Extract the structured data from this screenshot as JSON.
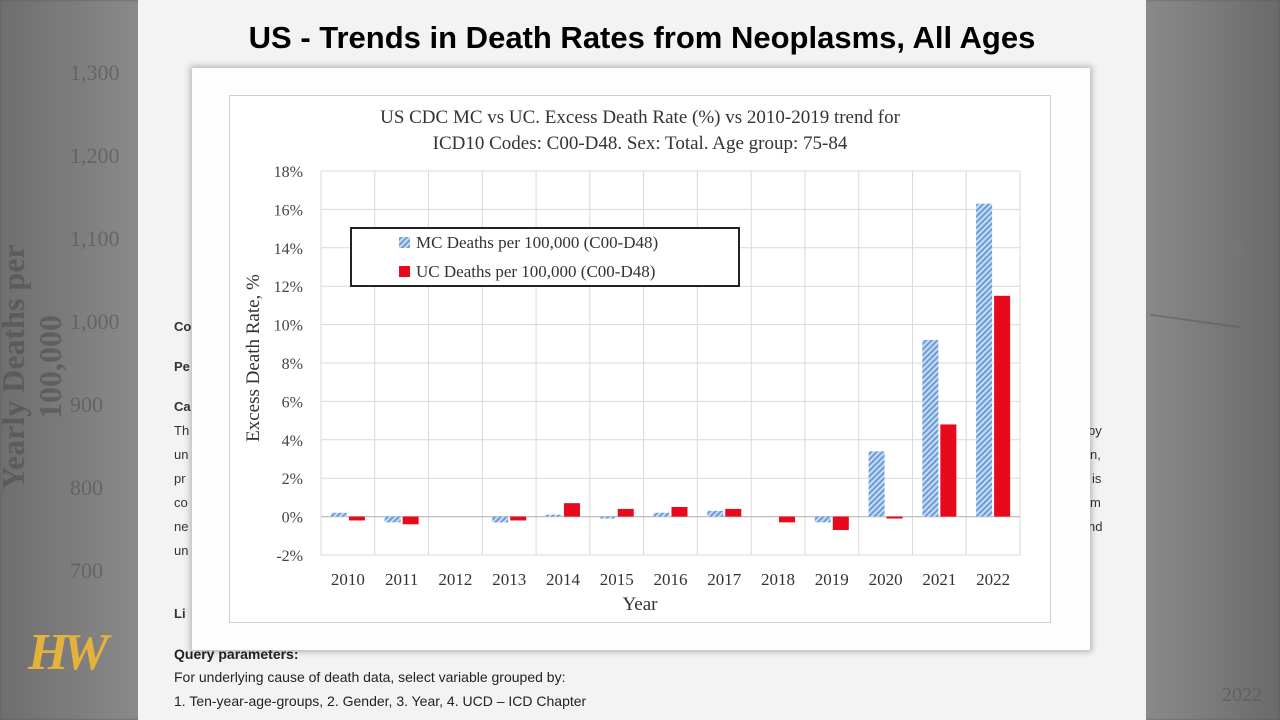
{
  "slide": {
    "title": "US - Trends in Death Rates from Neoplasms, All Ages",
    "background_fragments": {
      "co": "Co",
      "pe": "Pe",
      "ca": "Ca",
      "th": "Th",
      "un1": "un",
      "pr": "pr",
      "co2": "co",
      "ne": "ne",
      "un2": "un",
      "li": "Li",
      "right_by": "by",
      "right_n": "n,",
      "right_is": "is",
      "right_m": "m",
      "right_nd": "nd"
    },
    "query": {
      "title": "Query parameters:",
      "line1": "For underlying cause of death data, select variable grouped by:",
      "line2": "1. Ten-year-age-groups, 2. Gender, 3. Year, 4. UCD – ICD Chapter"
    },
    "logo": "HW",
    "background_chart": {
      "ylabel": "Yearly Deaths per 100,000",
      "ticks": [
        "1,300",
        "1,200",
        "1,100",
        "1,000",
        "900",
        "800",
        "700"
      ],
      "year": "2022"
    }
  },
  "colors": {
    "mc": "#6b9bd8",
    "uc": "#e8091c",
    "grid": "#d9d9d9"
  },
  "chart_data": {
    "type": "bar",
    "title": "US CDC MC vs UC. Excess Death Rate (%) vs 2010-2019 trend for",
    "subtitle": "ICD10 Codes: C00-D48. Sex: Total. Age group: 75-84",
    "xlabel": "Year",
    "ylabel": "Excess Death Rate, %",
    "categories": [
      "2010",
      "2011",
      "2012",
      "2013",
      "2014",
      "2015",
      "2016",
      "2017",
      "2018",
      "2019",
      "2020",
      "2021",
      "2022"
    ],
    "ylim": [
      -2,
      18
    ],
    "yticks": [
      "-2%",
      "0%",
      "2%",
      "4%",
      "6%",
      "8%",
      "10%",
      "12%",
      "14%",
      "16%",
      "18%"
    ],
    "grid": true,
    "legend_position": "top-left",
    "series": [
      {
        "name": "MC Deaths per 100,000 (C00-D48)",
        "style": "hatched",
        "values": [
          0.2,
          -0.3,
          0.0,
          -0.3,
          0.1,
          -0.1,
          0.2,
          0.3,
          0.0,
          -0.3,
          3.4,
          9.2,
          16.3
        ]
      },
      {
        "name": "UC Deaths per 100,000 (C00-D48)",
        "style": "solid",
        "values": [
          -0.2,
          -0.4,
          0.0,
          -0.2,
          0.7,
          0.4,
          0.5,
          0.4,
          -0.3,
          -0.7,
          -0.1,
          4.8,
          11.5
        ]
      }
    ]
  }
}
